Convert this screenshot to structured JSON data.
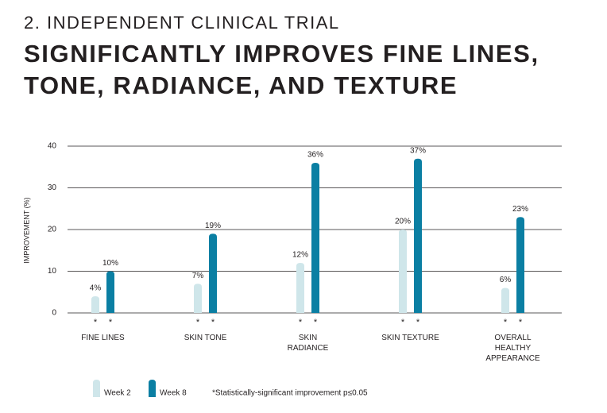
{
  "chart_data": {
    "type": "bar",
    "subtitle": "2. INDEPENDENT CLINICAL TRIAL",
    "title": "SIGNIFICANTLY IMPROVES FINE LINES, TONE, RADIANCE, AND TEXTURE",
    "ylabel": "IMPROVEMENT (%)",
    "categories": [
      "FINE LINES",
      "SKIN TONE",
      "SKIN\nRADIANCE",
      "SKIN TEXTURE",
      "OVERALL\nHEALTHY\nAPPEARANCE"
    ],
    "series": [
      {
        "name": "Week 2",
        "color": "#cfe6ea",
        "values": [
          4,
          7,
          12,
          20,
          6
        ],
        "value_labels": [
          "4%",
          "7%",
          "12%",
          "20%",
          "6%"
        ]
      },
      {
        "name": "Week 8",
        "color": "#0b7fa3",
        "values": [
          10,
          19,
          36,
          37,
          23
        ],
        "value_labels": [
          "10%",
          "19%",
          "36%",
          "37%",
          "23%"
        ]
      }
    ],
    "significance_marker": "*",
    "footnote": "*Statistically-significant improvement p≤0.05",
    "ylim": [
      0,
      40
    ],
    "yticks": [
      0,
      10,
      20,
      30,
      40
    ],
    "grid": true
  }
}
